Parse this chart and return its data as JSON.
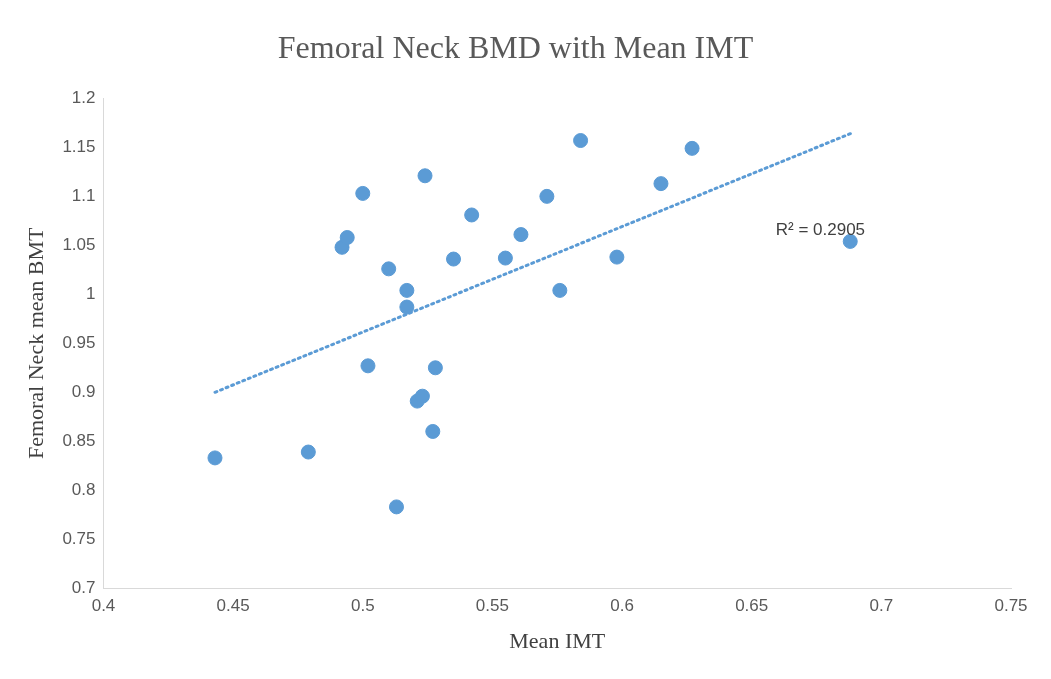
{
  "chart_data": {
    "type": "scatter",
    "title": "Femoral Neck BMD with Mean IMT",
    "xlabel": "Mean IMT",
    "ylabel": "Femoral Neck mean BMT",
    "xlim": [
      0.4,
      0.75
    ],
    "xticks": [
      0.4,
      0.45,
      0.5,
      0.55,
      0.6,
      0.65,
      0.7,
      0.75
    ],
    "ylim": [
      0.7,
      1.2
    ],
    "yticks": [
      0.7,
      0.75,
      0.8,
      0.85,
      0.9,
      0.95,
      1,
      1.05,
      1.1,
      1.15,
      1.2
    ],
    "grid": false,
    "legend": false,
    "marker": "circle",
    "series": [
      {
        "type": "scatter",
        "color": "#5b9bd5",
        "x": [
          0.443,
          0.479,
          0.492,
          0.494,
          0.5,
          0.502,
          0.51,
          0.517,
          0.517,
          0.513,
          0.521,
          0.523,
          0.528,
          0.527,
          0.524,
          0.535,
          0.542,
          0.555,
          0.561,
          0.571,
          0.576,
          0.584,
          0.598,
          0.615,
          0.627,
          0.688
        ],
        "values": [
          0.833,
          0.839,
          1.048,
          1.058,
          1.103,
          0.927,
          1.026,
          1.004,
          0.987,
          0.783,
          0.891,
          0.896,
          0.925,
          0.86,
          1.121,
          1.036,
          1.081,
          1.037,
          1.061,
          1.1,
          1.004,
          1.157,
          1.038,
          1.113,
          1.149,
          1.054
        ]
      },
      {
        "type": "line",
        "color": "#5b9bd5",
        "line_style": "dotted",
        "marker": "none",
        "x": [
          0.443,
          0.689
        ],
        "values": [
          0.9,
          1.165
        ]
      }
    ],
    "annotations": [
      "R² = 0.2905"
    ]
  }
}
